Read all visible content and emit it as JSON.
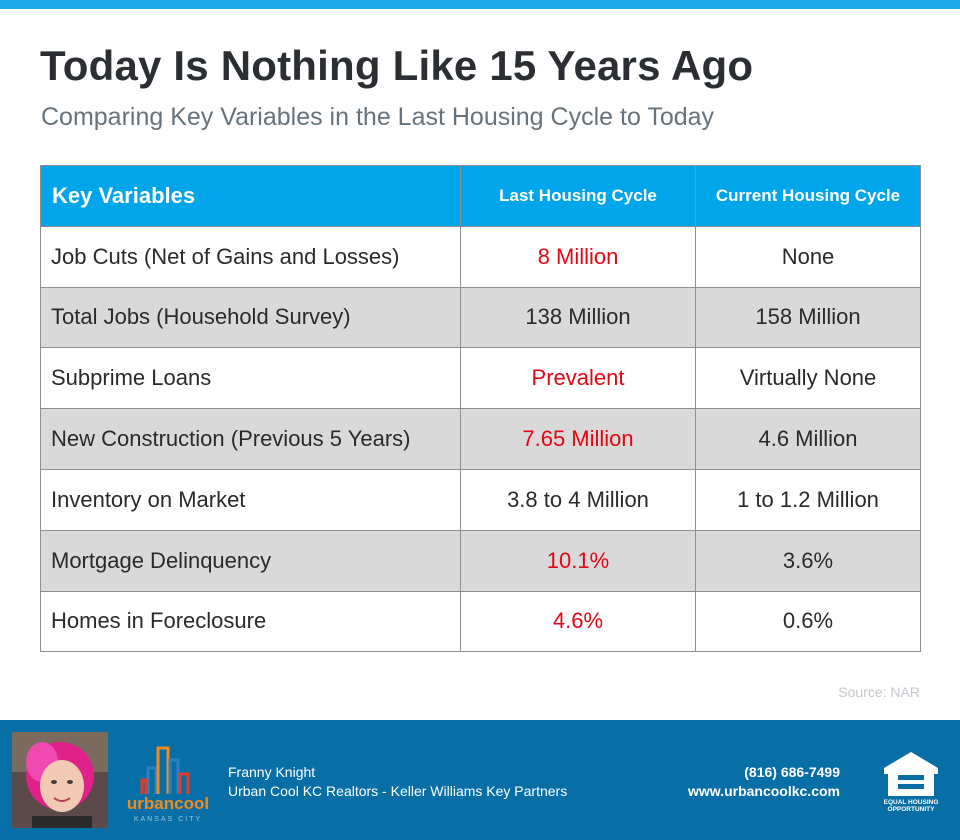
{
  "header": {
    "title": "Today Is Nothing Like 15 Years Ago",
    "subtitle": "Comparing Key Variables in the Last Housing Cycle to Today"
  },
  "table": {
    "headers": [
      "Key Variables",
      "Last Housing Cycle",
      "Current Housing Cycle"
    ],
    "rows": [
      {
        "variable": "Job Cuts (Net of Gains and Losses)",
        "last": "8 Million",
        "current": "None"
      },
      {
        "variable": "Total Jobs (Household Survey)",
        "last": "138 Million",
        "current": "158 Million"
      },
      {
        "variable": "Subprime Loans",
        "last": "Prevalent",
        "current": "Virtually None"
      },
      {
        "variable": "New Construction (Previous 5 Years)",
        "last": "7.65 Million",
        "current": "4.6 Million"
      },
      {
        "variable": "Inventory on Market",
        "last": "3.8 to 4 Million",
        "current": "1 to 1.2 Million"
      },
      {
        "variable": "Mortgage Delinquency",
        "last": "10.1%",
        "current": "3.6%"
      },
      {
        "variable": "Homes in Foreclosure",
        "last": "4.6%",
        "current": "0.6%"
      }
    ]
  },
  "source": "Source: NAR",
  "footer": {
    "agent_name": "Franny Knight",
    "brokerage": "Urban Cool KC Realtors - Keller Williams Key Partners",
    "phone": "(816) 686-7499",
    "website": "www.urbancoolkc.com",
    "logo_text": "urbancool",
    "logo_subtext": "KANSAS CITY",
    "eho_line1": "EQUAL HOUSING",
    "eho_line2": "OPPORTUNITY"
  },
  "colors": {
    "accent": "#00a5ea",
    "highlight_red": "#e30613",
    "footer_blue": "#086fa6",
    "row_alt": "#d9d9d9"
  }
}
